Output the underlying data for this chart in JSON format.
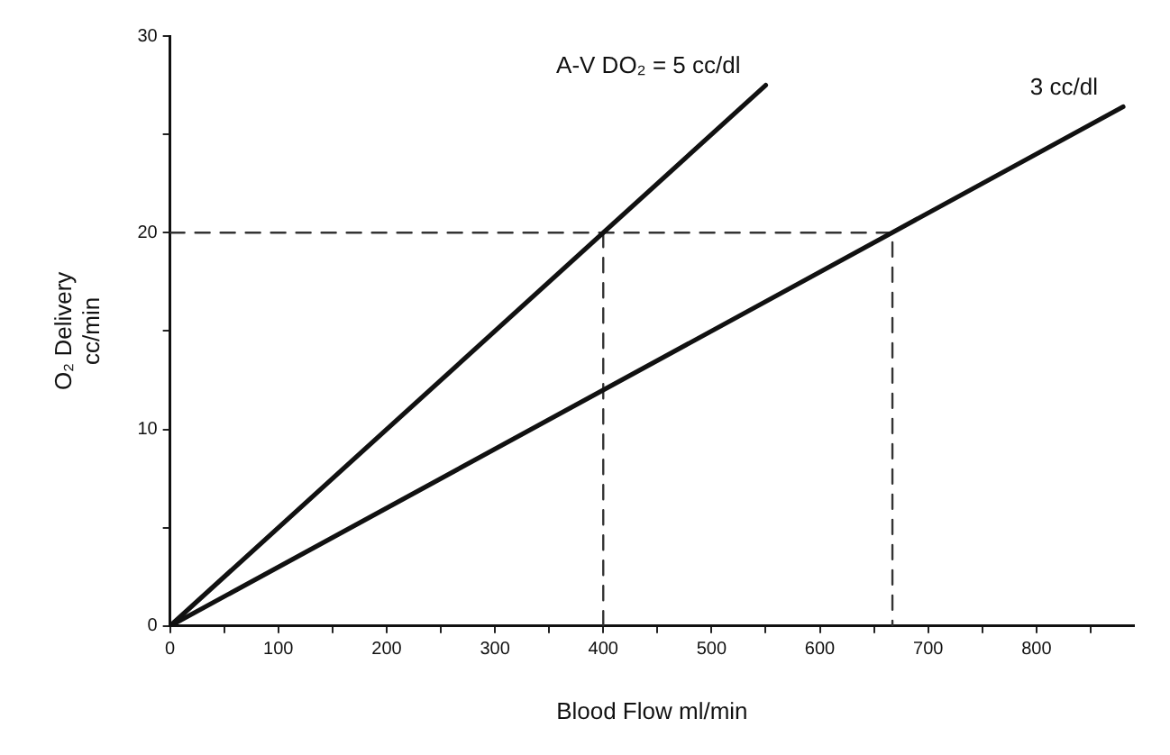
{
  "chart_data": {
    "type": "line",
    "xlabel": "Blood Flow ml/min",
    "ylabel": "O₂ Delivery\ncc/min",
    "xlim": [
      0,
      890
    ],
    "ylim": [
      0,
      30
    ],
    "xticks": [
      0,
      {
        "value": 50,
        "label": null
      },
      100,
      {
        "value": 150,
        "label": null
      },
      200,
      {
        "value": 250,
        "label": null
      },
      300,
      {
        "value": 350,
        "label": null
      },
      400,
      {
        "value": 450,
        "label": null
      },
      500,
      {
        "value": 550,
        "label": null
      },
      600,
      {
        "value": 650,
        "label": null
      },
      700,
      {
        "value": 750,
        "label": null
      },
      800,
      {
        "value": 850,
        "label": null
      }
    ],
    "yticks": [
      0,
      {
        "value": 5,
        "label": null
      },
      10,
      {
        "value": 15,
        "label": null
      },
      20,
      {
        "value": 25,
        "label": null
      },
      30
    ],
    "grid": false,
    "legend": false,
    "marker": "none",
    "series": [
      {
        "name": "A-V DO₂ = 5 cc/dl",
        "color": "#111111",
        "x": [
          0,
          550
        ],
        "values": [
          0,
          27.5
        ]
      },
      {
        "name": "3 cc/dl",
        "color": "#111111",
        "x": [
          0,
          880
        ],
        "values": [
          0,
          26.4
        ]
      },
      {
        "color": "#333333",
        "line_style": "dashed",
        "x": [
          0,
          667,
          667
        ],
        "values": [
          20,
          20,
          0
        ]
      },
      {
        "color": "#333333",
        "line_style": "dashed",
        "x": [
          400,
          400
        ],
        "values": [
          20,
          0
        ]
      }
    ]
  }
}
